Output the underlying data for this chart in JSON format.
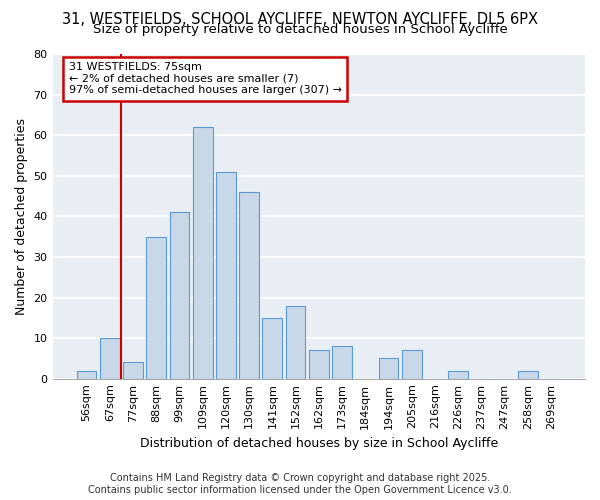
{
  "title1": "31, WESTFIELDS, SCHOOL AYCLIFFE, NEWTON AYCLIFFE, DL5 6PX",
  "title2": "Size of property relative to detached houses in School Aycliffe",
  "xlabel": "Distribution of detached houses by size in School Aycliffe",
  "ylabel": "Number of detached properties",
  "bar_labels": [
    "56sqm",
    "67sqm",
    "77sqm",
    "88sqm",
    "99sqm",
    "109sqm",
    "120sqm",
    "130sqm",
    "141sqm",
    "152sqm",
    "162sqm",
    "173sqm",
    "184sqm",
    "194sqm",
    "205sqm",
    "216sqm",
    "226sqm",
    "237sqm",
    "247sqm",
    "258sqm",
    "269sqm"
  ],
  "bar_values": [
    2,
    10,
    4,
    35,
    41,
    62,
    51,
    46,
    15,
    18,
    7,
    8,
    0,
    5,
    7,
    0,
    2,
    0,
    0,
    2,
    0
  ],
  "bar_color": "#c8d8e8",
  "bar_edge_color": "#5b9bd5",
  "vline_index": 2,
  "vline_color": "#cc0000",
  "ylim": [
    0,
    80
  ],
  "yticks": [
    0,
    10,
    20,
    30,
    40,
    50,
    60,
    70,
    80
  ],
  "annotation_title": "31 WESTFIELDS: 75sqm",
  "annotation_line1": "← 2% of detached houses are smaller (7)",
  "annotation_line2": "97% of semi-detached houses are larger (307) →",
  "footer1": "Contains HM Land Registry data © Crown copyright and database right 2025.",
  "footer2": "Contains public sector information licensed under the Open Government Licence v3.0.",
  "background_color": "#ffffff",
  "plot_bg_color": "#e8eef4",
  "grid_color": "#ffffff",
  "title_fontsize": 10.5,
  "subtitle_fontsize": 9.5,
  "axis_label_fontsize": 9,
  "tick_fontsize": 8,
  "annotation_fontsize": 8,
  "footer_fontsize": 7
}
